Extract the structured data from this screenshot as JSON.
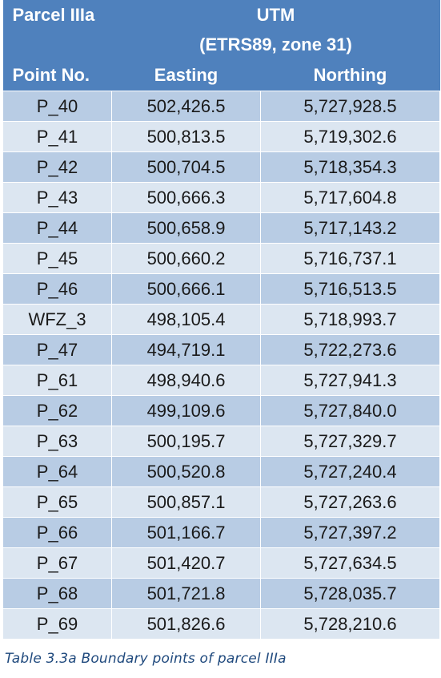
{
  "table": {
    "header": {
      "parcel": "Parcel IIIa",
      "utm": "UTM",
      "system": "(ETRS89, zone 31)",
      "point_no": "Point No.",
      "easting": "Easting",
      "northing": "Northing"
    },
    "rows": [
      {
        "point": "P_40",
        "easting": "502,426.5",
        "northing": "5,727,928.5"
      },
      {
        "point": "P_41",
        "easting": "500,813.5",
        "northing": "5,719,302.6"
      },
      {
        "point": "P_42",
        "easting": "500,704.5",
        "northing": "5,718,354.3"
      },
      {
        "point": "P_43",
        "easting": "500,666.3",
        "northing": "5,717,604.8"
      },
      {
        "point": "P_44",
        "easting": "500,658.9",
        "northing": "5,717,143.2"
      },
      {
        "point": "P_45",
        "easting": "500,660.2",
        "northing": "5,716,737.1"
      },
      {
        "point": "P_46",
        "easting": "500,666.1",
        "northing": "5,716,513.5"
      },
      {
        "point": "WFZ_3",
        "easting": "498,105.4",
        "northing": "5,718,993.7"
      },
      {
        "point": "P_47",
        "easting": "494,719.1",
        "northing": "5,722,273.6"
      },
      {
        "point": "P_61",
        "easting": "498,940.6",
        "northing": "5,727,941.3"
      },
      {
        "point": "P_62",
        "easting": "499,109.6",
        "northing": "5,727,840.0"
      },
      {
        "point": "P_63",
        "easting": "500,195.7",
        "northing": "5,727,329.7"
      },
      {
        "point": "P_64",
        "easting": "500,520.8",
        "northing": "5,727,240.4"
      },
      {
        "point": "P_65",
        "easting": "500,857.1",
        "northing": "5,727,263.6"
      },
      {
        "point": "P_66",
        "easting": "501,166.7",
        "northing": "5,727,397.2"
      },
      {
        "point": "P_67",
        "easting": "501,420.7",
        "northing": "5,727,634.5"
      },
      {
        "point": "P_68",
        "easting": "501,721.8",
        "northing": "5,728,035.7"
      },
      {
        "point": "P_69",
        "easting": "501,826.6",
        "northing": "5,728,210.6"
      }
    ]
  },
  "caption": "Table 3.3a Boundary points of parcel IIIa",
  "colors": {
    "header_bg": "#4f81bd",
    "row_odd": "#b8cce4",
    "row_even": "#dce6f1",
    "caption": "#1f497d"
  }
}
